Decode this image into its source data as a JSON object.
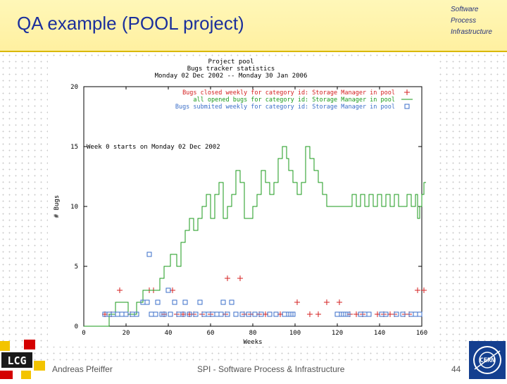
{
  "header": {
    "title": "QA example (POOL project)"
  },
  "spi_logo": {
    "lines": [
      "Software",
      "Process",
      "Infrastructure"
    ]
  },
  "footer": {
    "author": "Andreas Pfeiffer",
    "center": "SPI - Software Process & Infrastructure",
    "page_number": "44"
  },
  "lcg_logo": {
    "text": "LCG"
  },
  "cern_logo": {
    "text": "CERN"
  },
  "chart_data": {
    "type": "line",
    "title": [
      "Project pool",
      "Bugs tracker statistics",
      "Monday 02 Dec 2002 -- Monday 30 Jan 2006"
    ],
    "annotation": "Week 0 starts on Monday 02 Dec 2002",
    "xlabel": "Weeks",
    "ylabel": "# Bugs",
    "xlim": [
      0,
      160
    ],
    "ylim": [
      0,
      20
    ],
    "xticks": [
      0,
      20,
      40,
      60,
      80,
      100,
      120,
      140,
      160
    ],
    "xtick_labels": [
      "0",
      "20",
      "40",
      "60",
      "80",
      "100",
      "120",
      "140",
      "160"
    ],
    "yticks": [
      0,
      5,
      10,
      15,
      20
    ],
    "ytick_labels": [
      "0",
      "5",
      "10",
      "15",
      "20"
    ],
    "series": [
      {
        "name": "Bugs closed weekly for category id: Storage Manager in pool",
        "style": "points",
        "marker": "plus",
        "color": "#d42020",
        "points": [
          [
            10,
            1
          ],
          [
            13,
            1
          ],
          [
            17,
            3
          ],
          [
            22,
            1
          ],
          [
            31,
            3
          ],
          [
            33,
            3
          ],
          [
            38,
            1
          ],
          [
            42,
            3
          ],
          [
            44,
            1
          ],
          [
            47,
            1
          ],
          [
            50,
            1
          ],
          [
            52,
            1
          ],
          [
            56,
            1
          ],
          [
            60,
            1
          ],
          [
            67,
            1
          ],
          [
            68,
            4
          ],
          [
            74,
            4
          ],
          [
            76,
            1
          ],
          [
            79,
            1
          ],
          [
            83,
            1
          ],
          [
            86,
            1
          ],
          [
            93,
            1
          ],
          [
            101,
            2
          ],
          [
            107,
            1
          ],
          [
            111,
            1
          ],
          [
            115,
            2
          ],
          [
            121,
            2
          ],
          [
            126,
            1
          ],
          [
            129,
            1
          ],
          [
            132,
            1
          ],
          [
            139,
            1
          ],
          [
            142,
            1
          ],
          [
            145,
            1
          ],
          [
            147,
            1
          ],
          [
            152,
            1
          ],
          [
            154,
            1
          ],
          [
            158,
            3
          ],
          [
            161,
            3
          ]
        ]
      },
      {
        "name": "all opened bugs for category id: Storage Manager in pool",
        "style": "step",
        "color": "#1a9a1a",
        "points": [
          [
            0,
            0
          ],
          [
            12,
            0
          ],
          [
            12,
            1
          ],
          [
            15,
            1
          ],
          [
            15,
            2
          ],
          [
            21,
            2
          ],
          [
            21,
            1
          ],
          [
            25,
            1
          ],
          [
            25,
            2
          ],
          [
            28,
            2
          ],
          [
            28,
            3
          ],
          [
            36,
            3
          ],
          [
            36,
            4
          ],
          [
            38,
            4
          ],
          [
            38,
            5
          ],
          [
            41,
            5
          ],
          [
            41,
            6
          ],
          [
            44,
            6
          ],
          [
            44,
            5
          ],
          [
            46,
            5
          ],
          [
            46,
            7
          ],
          [
            48,
            7
          ],
          [
            48,
            8
          ],
          [
            50,
            8
          ],
          [
            50,
            9
          ],
          [
            52,
            9
          ],
          [
            52,
            8
          ],
          [
            54,
            8
          ],
          [
            54,
            9
          ],
          [
            56,
            9
          ],
          [
            56,
            10
          ],
          [
            58,
            10
          ],
          [
            58,
            11
          ],
          [
            60,
            11
          ],
          [
            60,
            9
          ],
          [
            62,
            9
          ],
          [
            62,
            11
          ],
          [
            64,
            11
          ],
          [
            64,
            12
          ],
          [
            66,
            12
          ],
          [
            66,
            9
          ],
          [
            68,
            9
          ],
          [
            68,
            10
          ],
          [
            70,
            10
          ],
          [
            70,
            11
          ],
          [
            72,
            11
          ],
          [
            72,
            13
          ],
          [
            74,
            13
          ],
          [
            74,
            12
          ],
          [
            76,
            12
          ],
          [
            76,
            9
          ],
          [
            80,
            9
          ],
          [
            80,
            10
          ],
          [
            82,
            10
          ],
          [
            82,
            11
          ],
          [
            84,
            11
          ],
          [
            84,
            13
          ],
          [
            86,
            13
          ],
          [
            86,
            12
          ],
          [
            88,
            12
          ],
          [
            88,
            11
          ],
          [
            90,
            11
          ],
          [
            90,
            12
          ],
          [
            92,
            12
          ],
          [
            92,
            14
          ],
          [
            94,
            14
          ],
          [
            94,
            15
          ],
          [
            96,
            15
          ],
          [
            96,
            14
          ],
          [
            97,
            14
          ],
          [
            97,
            13
          ],
          [
            99,
            13
          ],
          [
            99,
            12
          ],
          [
            101,
            12
          ],
          [
            101,
            11
          ],
          [
            103,
            11
          ],
          [
            103,
            12
          ],
          [
            105,
            12
          ],
          [
            105,
            15
          ],
          [
            107,
            15
          ],
          [
            107,
            14
          ],
          [
            109,
            14
          ],
          [
            109,
            13
          ],
          [
            111,
            13
          ],
          [
            111,
            12
          ],
          [
            113,
            12
          ],
          [
            113,
            11
          ],
          [
            115,
            11
          ],
          [
            115,
            10
          ],
          [
            127,
            10
          ],
          [
            127,
            11
          ],
          [
            129,
            11
          ],
          [
            129,
            10
          ],
          [
            131,
            10
          ],
          [
            131,
            11
          ],
          [
            133,
            11
          ],
          [
            133,
            10
          ],
          [
            135,
            10
          ],
          [
            135,
            11
          ],
          [
            137,
            11
          ],
          [
            137,
            10
          ],
          [
            139,
            10
          ],
          [
            139,
            11
          ],
          [
            141,
            11
          ],
          [
            141,
            10
          ],
          [
            143,
            10
          ],
          [
            143,
            11
          ],
          [
            145,
            11
          ],
          [
            145,
            10
          ],
          [
            147,
            10
          ],
          [
            147,
            11
          ],
          [
            149,
            11
          ],
          [
            149,
            10
          ],
          [
            153,
            10
          ],
          [
            153,
            11
          ],
          [
            155,
            11
          ],
          [
            155,
            10
          ],
          [
            157,
            10
          ],
          [
            157,
            11
          ],
          [
            158,
            11
          ],
          [
            158,
            9
          ],
          [
            159,
            9
          ],
          [
            159,
            10
          ],
          [
            160,
            10
          ],
          [
            160,
            11
          ],
          [
            161,
            11
          ],
          [
            161,
            12
          ],
          [
            162,
            12
          ]
        ]
      },
      {
        "name": "Bugs submited weekly for category id: Storage Manager in pool",
        "style": "points",
        "marker": "square",
        "color": "#3a6ec8",
        "points": [
          [
            10,
            1
          ],
          [
            12,
            1
          ],
          [
            14,
            1
          ],
          [
            16,
            1
          ],
          [
            18,
            1
          ],
          [
            20,
            1
          ],
          [
            23,
            1
          ],
          [
            25,
            1
          ],
          [
            28,
            2
          ],
          [
            30,
            2
          ],
          [
            32,
            1
          ],
          [
            34,
            1
          ],
          [
            35,
            2
          ],
          [
            37,
            1
          ],
          [
            38,
            1
          ],
          [
            40,
            3
          ],
          [
            41,
            1
          ],
          [
            43,
            2
          ],
          [
            45,
            1
          ],
          [
            47,
            1
          ],
          [
            48,
            2
          ],
          [
            50,
            1
          ],
          [
            53,
            1
          ],
          [
            55,
            2
          ],
          [
            57,
            1
          ],
          [
            59,
            1
          ],
          [
            61,
            1
          ],
          [
            63,
            1
          ],
          [
            65,
            1
          ],
          [
            66,
            2
          ],
          [
            68,
            1
          ],
          [
            70,
            2
          ],
          [
            72,
            1
          ],
          [
            75,
            1
          ],
          [
            78,
            1
          ],
          [
            81,
            1
          ],
          [
            84,
            1
          ],
          [
            88,
            1
          ],
          [
            91,
            1
          ],
          [
            95,
            1
          ],
          [
            97,
            1
          ],
          [
            98,
            1
          ],
          [
            99,
            1
          ],
          [
            120,
            1
          ],
          [
            122,
            1
          ],
          [
            123,
            1
          ],
          [
            124,
            1
          ],
          [
            125,
            1
          ],
          [
            131,
            1
          ],
          [
            133,
            1
          ],
          [
            135,
            1
          ],
          [
            141,
            1
          ],
          [
            143,
            1
          ],
          [
            148,
            1
          ],
          [
            151,
            1
          ],
          [
            155,
            1
          ],
          [
            157,
            1
          ],
          [
            159,
            1
          ],
          [
            31,
            6
          ]
        ]
      }
    ]
  }
}
